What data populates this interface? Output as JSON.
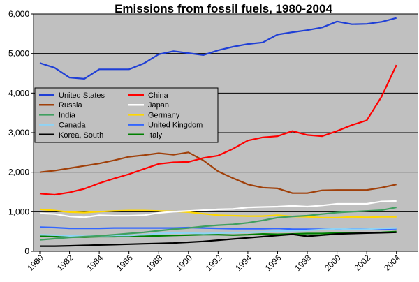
{
  "chart_data": {
    "type": "line",
    "title": "Emissions from fossil fuels, 1980-2004",
    "xlabel": "",
    "ylabel": "",
    "xlim": [
      1980,
      2005
    ],
    "ylim": [
      0,
      6000
    ],
    "yticks": [
      0,
      1000,
      2000,
      3000,
      4000,
      5000,
      6000
    ],
    "ytick_labels": [
      "0",
      "1,000",
      "2,000",
      "3,000",
      "4,000",
      "5,000",
      "6,000"
    ],
    "xticks": [
      1980,
      1982,
      1984,
      1986,
      1988,
      1990,
      1992,
      1994,
      1996,
      1998,
      2000,
      2002,
      2004
    ],
    "xtick_labels": [
      "1980",
      "1982",
      "1984",
      "1986",
      "1988",
      "1990",
      "1992",
      "1994",
      "1996",
      "1998",
      "2000",
      "2002",
      "2004"
    ],
    "grid": "horizontal",
    "plot_background": "#c0c0c0",
    "legend_position": "left",
    "x": [
      1980,
      1981,
      1982,
      1983,
      1984,
      1985,
      1986,
      1987,
      1988,
      1989,
      1990,
      1991,
      1992,
      1993,
      1994,
      1995,
      1996,
      1997,
      1998,
      1999,
      2000,
      2001,
      2002,
      2003,
      2004
    ],
    "series": [
      {
        "name": "United States",
        "color": "#1f3fd6",
        "values": [
          4760,
          4640,
          4390,
          4360,
          4600,
          4600,
          4600,
          4750,
          4980,
          5060,
          5010,
          4960,
          5080,
          5170,
          5240,
          5280,
          5480,
          5540,
          5590,
          5660,
          5810,
          5740,
          5750,
          5800,
          5900
        ]
      },
      {
        "name": "China",
        "color": "#ff0000",
        "values": [
          1460,
          1430,
          1490,
          1580,
          1720,
          1840,
          1950,
          2080,
          2210,
          2250,
          2260,
          2360,
          2420,
          2590,
          2800,
          2880,
          2910,
          3040,
          2940,
          2910,
          3040,
          3190,
          3310,
          3910,
          4710
        ]
      },
      {
        "name": "Russia",
        "color": "#a0400a",
        "values": [
          2000,
          2040,
          2100,
          2160,
          2220,
          2300,
          2390,
          2430,
          2480,
          2440,
          2500,
          2300,
          2020,
          1850,
          1690,
          1610,
          1590,
          1470,
          1470,
          1540,
          1550,
          1550,
          1550,
          1610,
          1690
        ]
      },
      {
        "name": "Japan",
        "color": "#ffffff",
        "values": [
          960,
          940,
          880,
          860,
          910,
          900,
          900,
          910,
          970,
          1000,
          1020,
          1040,
          1060,
          1070,
          1110,
          1120,
          1130,
          1150,
          1130,
          1160,
          1200,
          1200,
          1200,
          1260,
          1270
        ]
      },
      {
        "name": "India",
        "color": "#3f9f5f",
        "values": [
          290,
          320,
          350,
          370,
          390,
          420,
          450,
          480,
          520,
          560,
          590,
          630,
          660,
          680,
          720,
          780,
          850,
          880,
          900,
          940,
          980,
          1000,
          1020,
          1040,
          1110
        ]
      },
      {
        "name": "Germany",
        "color": "#ffd700",
        "values": [
          1060,
          1030,
          990,
          980,
          1000,
          1020,
          1030,
          1030,
          1020,
          1010,
          990,
          950,
          910,
          900,
          890,
          890,
          910,
          880,
          870,
          850,
          850,
          870,
          860,
          870,
          870
        ]
      },
      {
        "name": "Canada",
        "color": "#8fd3f5",
        "values": [
          420,
          410,
          390,
          380,
          390,
          400,
          400,
          420,
          450,
          460,
          460,
          450,
          460,
          470,
          480,
          490,
          510,
          520,
          530,
          550,
          570,
          560,
          560,
          580,
          590
        ]
      },
      {
        "name": "United Kingdom",
        "color": "#3366ff",
        "values": [
          610,
          600,
          580,
          580,
          580,
          590,
          590,
          590,
          590,
          590,
          600,
          590,
          580,
          570,
          570,
          570,
          580,
          560,
          560,
          560,
          560,
          570,
          560,
          560,
          570
        ]
      },
      {
        "name": "Korea, South",
        "color": "#000000",
        "values": [
          130,
          130,
          140,
          150,
          160,
          170,
          180,
          190,
          200,
          210,
          230,
          250,
          280,
          310,
          340,
          370,
          400,
          430,
          380,
          410,
          440,
          450,
          460,
          470,
          480
        ]
      },
      {
        "name": "Italy",
        "color": "#008000",
        "values": [
          380,
          370,
          360,
          360,
          370,
          370,
          380,
          380,
          390,
          400,
          410,
          420,
          420,
          410,
          420,
          440,
          430,
          440,
          450,
          450,
          460,
          460,
          470,
          480,
          500
        ]
      }
    ]
  }
}
